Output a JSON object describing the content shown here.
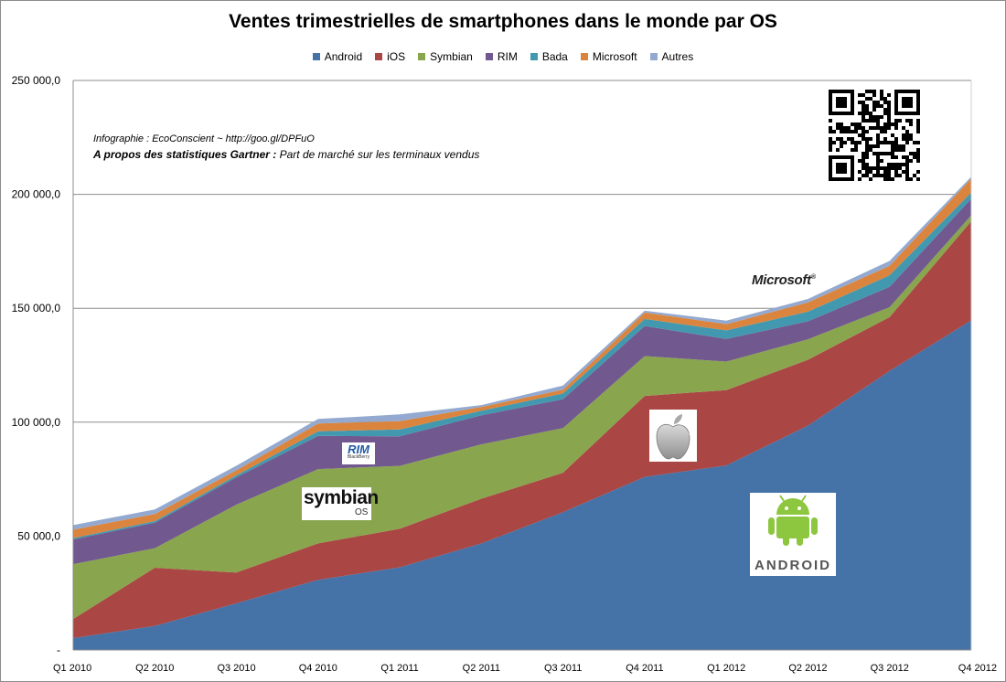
{
  "chart_data": {
    "type": "area",
    "stacked": true,
    "title": "Ventes trimestrielles de smartphones dans le monde par OS",
    "xlabel": "",
    "ylabel": "",
    "categories": [
      "Q1 2010",
      "Q2 2010",
      "Q3 2010",
      "Q4 2010",
      "Q1 2011",
      "Q2 2011",
      "Q3 2011",
      "Q4 2011",
      "Q1 2012",
      "Q2 2012",
      "Q3 2012",
      "Q4 2012"
    ],
    "ylim": [
      0,
      250000
    ],
    "yticks": [
      0,
      50000,
      100000,
      150000,
      200000,
      250000
    ],
    "ytick_labels": [
      "-",
      "50 000,0",
      "100 000,0",
      "150 000,0",
      "200 000,0",
      "250 000,0"
    ],
    "grid": true,
    "legend_position": "top",
    "series": [
      {
        "name": "Android",
        "color": "#4572A7",
        "values": [
          5200,
          10600,
          20500,
          30800,
          36300,
          46800,
          60500,
          76000,
          81000,
          98500,
          122500,
          144700
        ]
      },
      {
        "name": "iOS",
        "color": "#AA4643",
        "values": [
          8400,
          25500,
          13500,
          16000,
          16900,
          19600,
          17300,
          35500,
          33100,
          28900,
          23600,
          43500
        ]
      },
      {
        "name": "Symbian",
        "color": "#89A54E",
        "values": [
          24100,
          8600,
          29800,
          32600,
          27600,
          23900,
          19600,
          17500,
          12500,
          9000,
          4400,
          2600
        ]
      },
      {
        "name": "RIM",
        "color": "#71588F",
        "values": [
          10800,
          11200,
          12000,
          14600,
          13000,
          12700,
          12700,
          13200,
          9900,
          7900,
          8900,
          7300
        ]
      },
      {
        "name": "Bada",
        "color": "#4198AF",
        "values": [
          600,
          700,
          900,
          2000,
          3000,
          2000,
          2500,
          3100,
          3800,
          4200,
          5100,
          2700
        ]
      },
      {
        "name": "Microsoft",
        "color": "#DB843D",
        "values": [
          3700,
          3100,
          2200,
          3400,
          3700,
          1700,
          1700,
          2800,
          2700,
          4100,
          4100,
          6200
        ]
      },
      {
        "name": "Autres",
        "color": "#93A9CF",
        "values": [
          2000,
          2000,
          2000,
          2000,
          2900,
          800,
          1800,
          800,
          1600,
          1500,
          2200,
          800
        ]
      }
    ],
    "annotations": {
      "line1": "Infographie : EcoConscient ~ http://goo.gl/DPFuO",
      "line2_bold": "A propos des statistiques Gartner :",
      "line2_rest": " Part de marché sur les terminaux vendus"
    },
    "logos": {
      "symbian_main": "symbian",
      "symbian_sub": "OS",
      "rim_main": "RIM",
      "rim_sub": "BlackBerry",
      "microsoft": "Microsoft",
      "android_wordmark": "ANDROID",
      "qr_icon": "qr-code-icon",
      "apple_icon": "apple-logo-icon",
      "android_icon": "android-robot-icon"
    }
  }
}
